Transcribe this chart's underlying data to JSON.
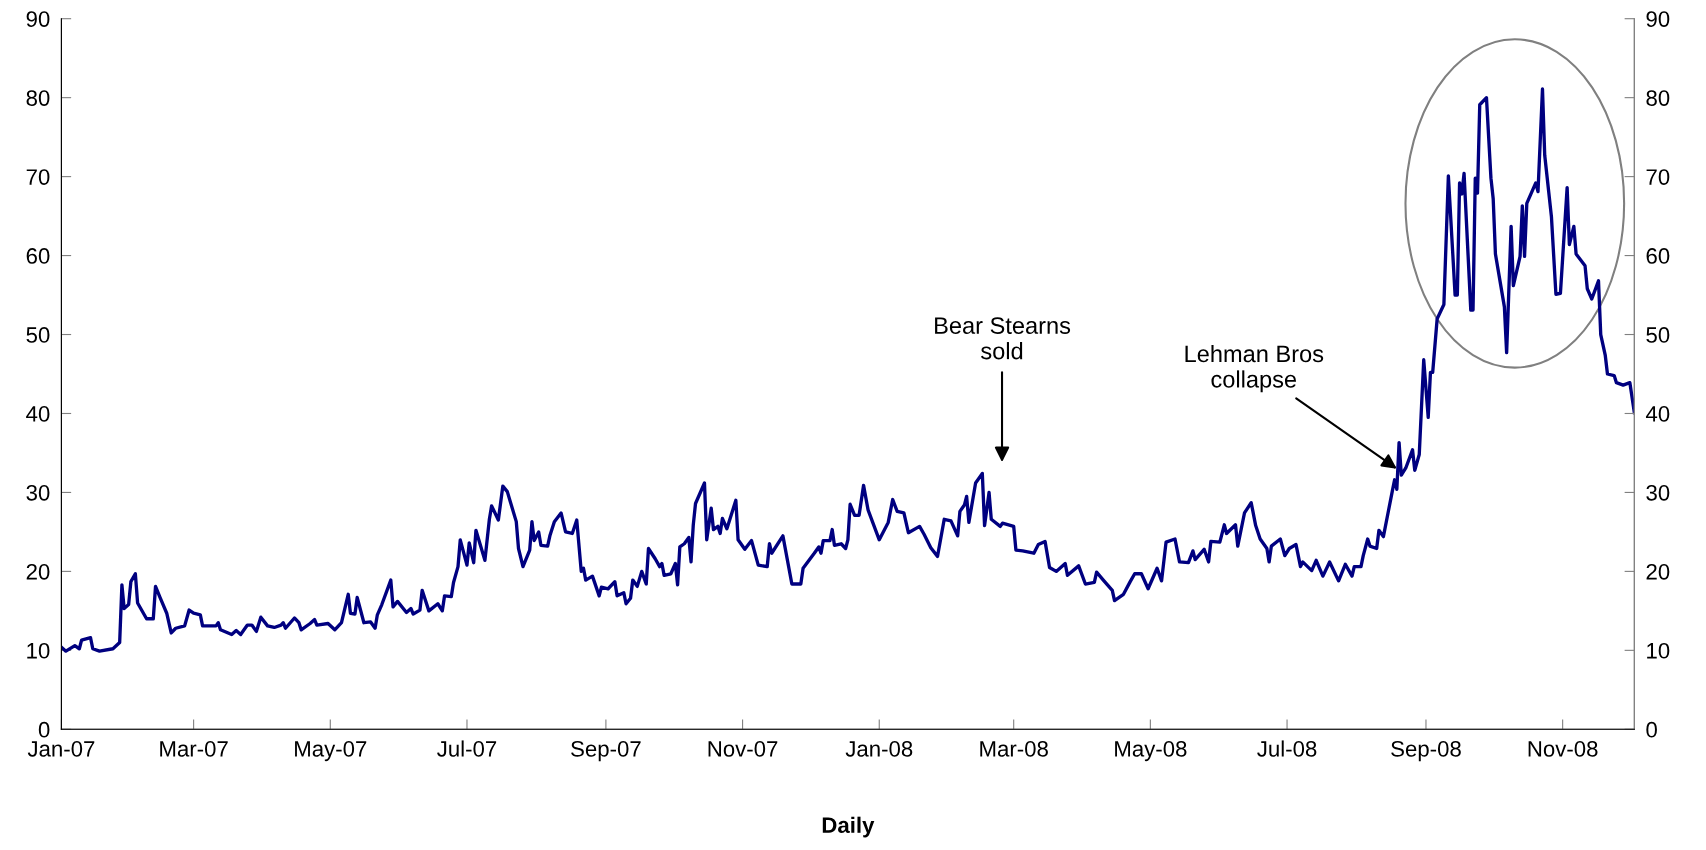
{
  "chart_data": {
    "type": "line",
    "xlabel": "Daily",
    "x": [
      "2007-01-01",
      "2007-01-03",
      "2007-01-07",
      "2007-01-09",
      "2007-01-10",
      "2007-01-14",
      "2007-01-15",
      "2007-01-18",
      "2007-01-24",
      "2007-01-27",
      "2007-01-28",
      "2007-01-29",
      "2007-01-31",
      "2007-02-01",
      "2007-02-03",
      "2007-02-04",
      "2007-02-08",
      "2007-02-11",
      "2007-02-12",
      "2007-02-14",
      "2007-02-17",
      "2007-02-19",
      "2007-02-21",
      "2007-02-25",
      "2007-02-27",
      "2007-03-01",
      "2007-03-04",
      "2007-03-05",
      "2007-03-11",
      "2007-03-12",
      "2007-03-13",
      "2007-03-18",
      "2007-03-20",
      "2007-03-22",
      "2007-03-25",
      "2007-03-27",
      "2007-03-29",
      "2007-03-31",
      "2007-04-03",
      "2007-04-06",
      "2007-04-09",
      "2007-04-10",
      "2007-04-11",
      "2007-04-15",
      "2007-04-17",
      "2007-04-18",
      "2007-04-22",
      "2007-04-24",
      "2007-04-25",
      "2007-04-30",
      "2007-05-03",
      "2007-05-06",
      "2007-05-09",
      "2007-05-10",
      "2007-05-12",
      "2007-05-13",
      "2007-05-16",
      "2007-05-19",
      "2007-05-21",
      "2007-05-22",
      "2007-05-24",
      "2007-05-28",
      "2007-05-29",
      "2007-05-31",
      "2007-06-04",
      "2007-06-06",
      "2007-06-07",
      "2007-06-10",
      "2007-06-11",
      "2007-06-14",
      "2007-06-18",
      "2007-06-20",
      "2007-06-21",
      "2007-06-24",
      "2007-06-25",
      "2007-06-27",
      "2007-06-28",
      "2007-07-01",
      "2007-07-02",
      "2007-07-04",
      "2007-07-05",
      "2007-07-09",
      "2007-07-11",
      "2007-07-12",
      "2007-07-15",
      "2007-07-17",
      "2007-07-19",
      "2007-07-23",
      "2007-07-24",
      "2007-07-26",
      "2007-07-29",
      "2007-07-30",
      "2007-07-31",
      "2007-08-02",
      "2007-08-03",
      "2007-08-06",
      "2007-08-07",
      "2007-08-09",
      "2007-08-12",
      "2007-08-14",
      "2007-08-17",
      "2007-08-19",
      "2007-08-21",
      "2007-08-22",
      "2007-08-23",
      "2007-08-26",
      "2007-08-29",
      "2007-08-30",
      "2007-09-02",
      "2007-09-05",
      "2007-09-06",
      "2007-09-09",
      "2007-09-10",
      "2007-09-12",
      "2007-09-13",
      "2007-09-15",
      "2007-09-17",
      "2007-09-19",
      "2007-09-20",
      "2007-09-23",
      "2007-09-25",
      "2007-09-26",
      "2007-09-27",
      "2007-09-30",
      "2007-10-02",
      "2007-10-03",
      "2007-10-04",
      "2007-10-06",
      "2007-10-08",
      "2007-10-09",
      "2007-10-10",
      "2007-10-11",
      "2007-10-15",
      "2007-10-16",
      "2007-10-18",
      "2007-10-19",
      "2007-10-21",
      "2007-10-22",
      "2007-10-23",
      "2007-10-25",
      "2007-10-29",
      "2007-10-30",
      "2007-11-02",
      "2007-11-05",
      "2007-11-08",
      "2007-11-12",
      "2007-11-13",
      "2007-11-14",
      "2007-11-19",
      "2007-11-23",
      "2007-11-27",
      "2007-11-28",
      "2007-12-03",
      "2007-12-05",
      "2007-12-06",
      "2007-12-07",
      "2007-12-10",
      "2007-12-11",
      "2007-12-12",
      "2007-12-15",
      "2007-12-17",
      "2007-12-18",
      "2007-12-19",
      "2007-12-21",
      "2007-12-23",
      "2007-12-25",
      "2007-12-27",
      "2008-01-01",
      "2008-01-05",
      "2008-01-07",
      "2008-01-09",
      "2008-01-12",
      "2008-01-14",
      "2008-01-19",
      "2008-01-21",
      "2008-01-24",
      "2008-01-27",
      "2008-01-30",
      "2008-02-02",
      "2008-02-05",
      "2008-02-06",
      "2008-02-08",
      "2008-02-09",
      "2008-02-10",
      "2008-02-13",
      "2008-02-16",
      "2008-02-17",
      "2008-02-19",
      "2008-02-20",
      "2008-02-24",
      "2008-02-25",
      "2008-03-01",
      "2008-03-02",
      "2008-03-05",
      "2008-03-10",
      "2008-03-12",
      "2008-03-15",
      "2008-03-17",
      "2008-03-20",
      "2008-03-24",
      "2008-03-25",
      "2008-03-30",
      "2008-04-02",
      "2008-04-06",
      "2008-04-07",
      "2008-04-10",
      "2008-04-14",
      "2008-04-15",
      "2008-04-19",
      "2008-04-22",
      "2008-04-24",
      "2008-04-27",
      "2008-04-30",
      "2008-05-04",
      "2008-05-06",
      "2008-05-08",
      "2008-05-12",
      "2008-05-14",
      "2008-05-18",
      "2008-05-20",
      "2008-05-21",
      "2008-05-25",
      "2008-05-27",
      "2008-05-28",
      "2008-06-01",
      "2008-06-03",
      "2008-06-04",
      "2008-06-08",
      "2008-06-09",
      "2008-06-12",
      "2008-06-15",
      "2008-06-17",
      "2008-06-19",
      "2008-06-22",
      "2008-06-23",
      "2008-06-24",
      "2008-06-28",
      "2008-06-30",
      "2008-07-02",
      "2008-07-05",
      "2008-07-07",
      "2008-07-08",
      "2008-07-12",
      "2008-07-14",
      "2008-07-17",
      "2008-07-20",
      "2008-07-24",
      "2008-07-27",
      "2008-07-30",
      "2008-07-31",
      "2008-08-03",
      "2008-08-04",
      "2008-08-06",
      "2008-08-07",
      "2008-08-10",
      "2008-08-11",
      "2008-08-13",
      "2008-08-15",
      "2008-08-17",
      "2008-08-18",
      "2008-08-19",
      "2008-08-20",
      "2008-08-21",
      "2008-08-23",
      "2008-08-26",
      "2008-08-27",
      "2008-08-29",
      "2008-08-31",
      "2008-09-02",
      "2008-09-03",
      "2008-09-04",
      "2008-09-06",
      "2008-09-09",
      "2008-09-11",
      "2008-09-14",
      "2008-09-15",
      "2008-09-16",
      "2008-09-17",
      "2008-09-18",
      "2008-09-21",
      "2008-09-22",
      "2008-09-23",
      "2008-09-24",
      "2008-09-25",
      "2008-09-28",
      "2008-09-30",
      "2008-10-01",
      "2008-10-02",
      "2008-10-06",
      "2008-10-07",
      "2008-10-09",
      "2008-10-10",
      "2008-10-13",
      "2008-10-14",
      "2008-10-15",
      "2008-10-16",
      "2008-10-20",
      "2008-10-21",
      "2008-10-23",
      "2008-10-24",
      "2008-10-27",
      "2008-10-29",
      "2008-10-31",
      "2008-11-03",
      "2008-11-04",
      "2008-11-06",
      "2008-11-07",
      "2008-11-11",
      "2008-11-12",
      "2008-11-14",
      "2008-11-17",
      "2008-11-18",
      "2008-11-20",
      "2008-11-21",
      "2008-11-24",
      "2008-11-25",
      "2008-11-28",
      "2008-12-01",
      "2008-12-03"
    ],
    "series": [
      {
        "color": "#000080",
        "values": [
          10.4,
          9.9,
          10.6,
          10.2,
          11.3,
          11.6,
          10.2,
          9.9,
          10.2,
          11.0,
          18.3,
          15.3,
          15.8,
          18.7,
          19.7,
          16.0,
          14.0,
          14.0,
          18.1,
          16.7,
          14.7,
          12.2,
          12.8,
          13.1,
          15.1,
          14.7,
          14.5,
          13.1,
          13.1,
          13.5,
          12.6,
          12.0,
          12.5,
          12.0,
          13.2,
          13.2,
          12.4,
          14.2,
          13.1,
          12.9,
          13.2,
          13.5,
          12.8,
          14.1,
          13.5,
          12.6,
          13.4,
          13.9,
          13.2,
          13.4,
          12.6,
          13.5,
          17.1,
          14.7,
          14.6,
          16.7,
          13.5,
          13.6,
          12.8,
          14.5,
          15.8,
          18.9,
          15.5,
          16.2,
          14.8,
          15.3,
          14.6,
          15.1,
          17.6,
          15.0,
          15.9,
          15.0,
          16.9,
          16.8,
          18.6,
          20.6,
          24.0,
          20.8,
          23.6,
          21.1,
          25.2,
          21.4,
          26.6,
          28.3,
          26.5,
          30.8,
          30.1,
          26.3,
          22.9,
          20.6,
          22.7,
          26.3,
          23.9,
          25.0,
          23.3,
          23.2,
          24.5,
          26.3,
          27.4,
          25.0,
          24.8,
          26.5,
          20.0,
          20.4,
          18.9,
          19.4,
          16.9,
          18.0,
          17.8,
          18.7,
          16.9,
          17.3,
          15.9,
          16.6,
          18.9,
          18.1,
          20.0,
          18.4,
          22.9,
          21.6,
          20.6,
          21.0,
          19.5,
          19.7,
          21.0,
          18.3,
          23.1,
          23.5,
          24.3,
          21.2,
          25.9,
          28.6,
          31.2,
          24.0,
          28.0,
          25.3,
          25.7,
          24.8,
          26.7,
          25.4,
          29.0,
          24.0,
          22.8,
          23.9,
          20.8,
          20.6,
          23.5,
          22.3,
          24.5,
          18.4,
          18.4,
          20.4,
          22.3,
          23.1,
          22.3,
          23.9,
          23.9,
          25.3,
          23.3,
          23.5,
          22.9,
          24.0,
          28.5,
          27.1,
          27.1,
          30.9,
          27.8,
          24.0,
          26.2,
          29.1,
          27.6,
          27.4,
          24.9,
          25.7,
          24.7,
          23.0,
          21.9,
          26.6,
          26.4,
          24.5,
          27.6,
          28.4,
          29.5,
          26.2,
          31.2,
          32.4,
          25.8,
          30.0,
          26.6,
          25.7,
          26.1,
          25.7,
          22.7,
          22.6,
          22.3,
          23.4,
          23.8,
          20.5,
          20.0,
          21.0,
          19.5,
          20.7,
          18.4,
          18.6,
          19.9,
          18.9,
          17.6,
          16.3,
          17.1,
          18.7,
          19.7,
          19.7,
          17.8,
          20.4,
          18.8,
          23.7,
          24.1,
          21.2,
          21.1,
          22.6,
          21.5,
          22.8,
          21.2,
          23.8,
          23.7,
          25.9,
          24.8,
          25.9,
          23.2,
          27.4,
          28.7,
          25.8,
          24.1,
          22.9,
          21.2,
          23.2,
          24.1,
          22.0,
          22.9,
          23.4,
          20.6,
          21.2,
          20.1,
          21.4,
          19.4,
          21.2,
          18.8,
          20.9,
          19.4,
          20.6,
          20.6,
          22.0,
          24.1,
          23.2,
          22.9,
          25.2,
          24.4,
          27.3,
          30.2,
          31.6,
          30.4,
          36.3,
          32.2,
          33.1,
          35.4,
          32.8,
          34.8,
          46.8,
          39.5,
          45.2,
          45.2,
          52.0,
          53.8,
          70.1,
          55.0,
          55.0,
          69.2,
          67.8,
          70.4,
          53.1,
          53.1,
          69.8,
          67.9,
          79.1,
          80.0,
          69.8,
          67.2,
          60.2,
          53.5,
          47.7,
          63.7,
          56.2,
          59.9,
          66.3,
          59.9,
          66.6,
          69.2,
          68.1,
          81.1,
          72.7,
          64.9,
          55.1,
          55.2,
          68.6,
          61.4,
          63.7,
          60.2,
          58.7,
          55.8,
          54.5,
          56.8,
          50.0,
          47.4,
          45.0,
          44.8,
          43.9,
          43.6,
          43.9,
          40.1
        ]
      }
    ],
    "xlim": [
      "2007-01-01",
      "2008-12-03"
    ],
    "xticks": [
      {
        "value": "2007-01-01",
        "label": "Jan-07"
      },
      {
        "value": "2007-03-01",
        "label": "Mar-07"
      },
      {
        "value": "2007-05-01",
        "label": "May-07"
      },
      {
        "value": "2007-07-01",
        "label": "Jul-07"
      },
      {
        "value": "2007-09-01",
        "label": "Sep-07"
      },
      {
        "value": "2007-11-01",
        "label": "Nov-07"
      },
      {
        "value": "2008-01-01",
        "label": "Jan-08"
      },
      {
        "value": "2008-03-01",
        "label": "Mar-08"
      },
      {
        "value": "2008-05-01",
        "label": "May-08"
      },
      {
        "value": "2008-07-01",
        "label": "Jul-08"
      },
      {
        "value": "2008-09-01",
        "label": "Sep-08"
      },
      {
        "value": "2008-11-01",
        "label": "Nov-08"
      }
    ],
    "ylim": [
      0,
      90
    ],
    "yticks": [
      0,
      10,
      20,
      30,
      40,
      50,
      60,
      70,
      80,
      90
    ],
    "y2lim": [
      0,
      90
    ],
    "y2ticks": [
      0,
      10,
      20,
      30,
      40,
      50,
      60,
      70,
      80,
      90
    ],
    "annotations": [
      "Bear Stearns\nsold",
      {
        "text": "Lehman Bros\ncollapse",
        "x": "2008-08-19",
        "y": 33
      }
    ],
    "grid": false,
    "legend": false,
    "marker": "none",
    "line_style": "solid"
  }
}
